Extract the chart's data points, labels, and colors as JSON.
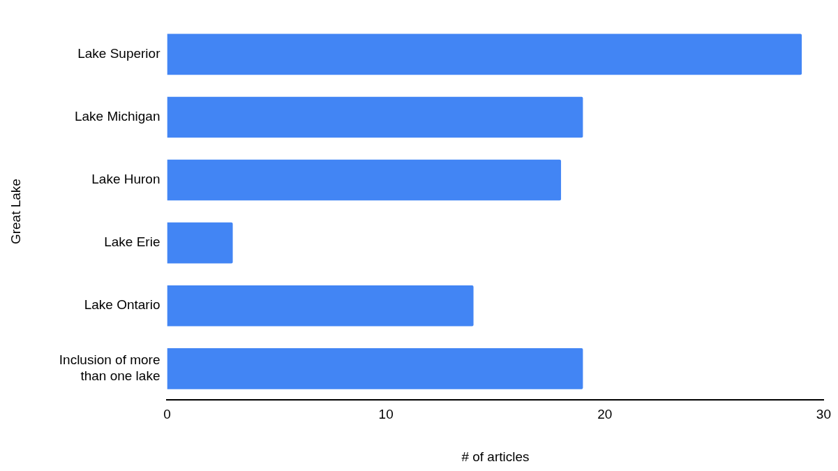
{
  "chart_data": {
    "type": "bar",
    "orientation": "horizontal",
    "xlabel": "# of articles",
    "ylabel": "Great Lake",
    "categories": [
      "Lake Superior",
      "Lake Michigan",
      "Lake Huron",
      "Lake Erie",
      "Lake Ontario",
      "Inclusion of more than one lake"
    ],
    "values": [
      29,
      19,
      18,
      3,
      14,
      19
    ],
    "color": "#4285f4",
    "xlim": [
      0,
      30
    ],
    "xticks": [
      0,
      10,
      20,
      30
    ],
    "grid": false,
    "legend": false
  }
}
